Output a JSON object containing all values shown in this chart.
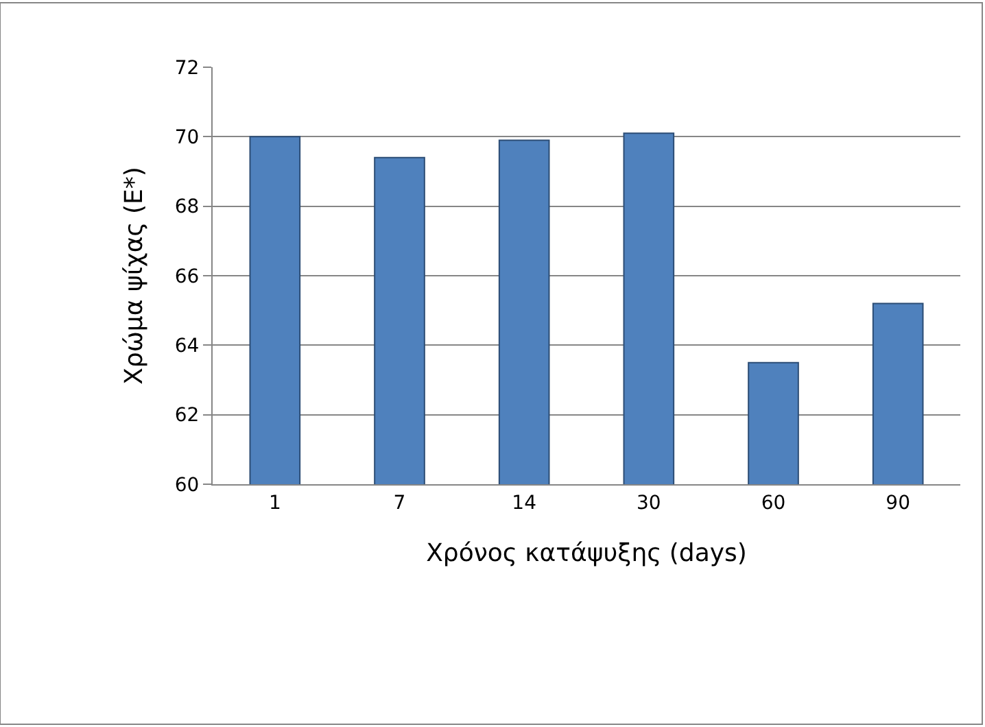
{
  "chart_data": {
    "type": "bar",
    "xlabel": "Χρόνος κατάψυξης (days)",
    "ylabel": "Χρώμα ψίχας (E*)",
    "categories": [
      "1",
      "7",
      "14",
      "30",
      "60",
      "90"
    ],
    "values": [
      70.0,
      69.4,
      69.9,
      70.1,
      63.5,
      65.2
    ],
    "color": "#4f81bd",
    "ylim": [
      60,
      72
    ],
    "yticks": [
      60,
      62,
      64,
      66,
      68,
      70,
      72
    ],
    "grid": "y"
  }
}
